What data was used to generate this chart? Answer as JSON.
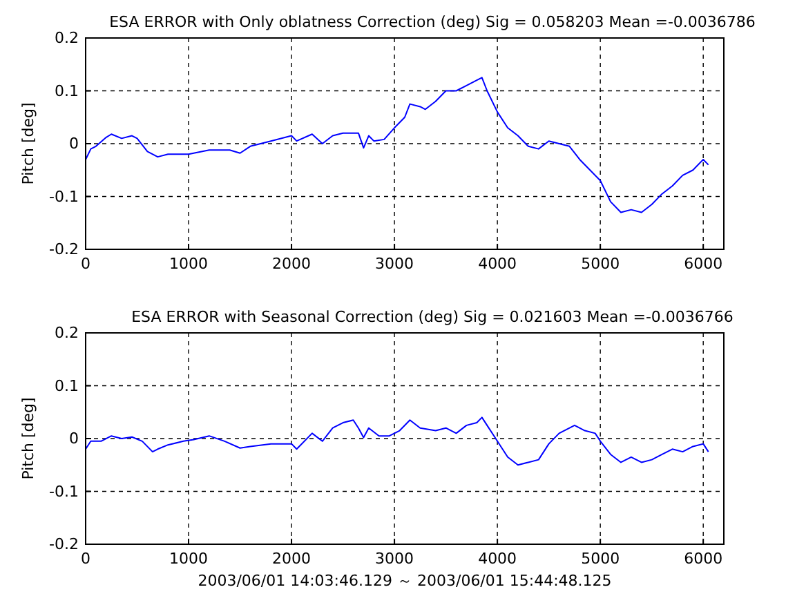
{
  "chart_data": [
    {
      "type": "line",
      "title": "ESA ERROR with Only oblatness Correction (deg)   Sig = 0.058203 Mean =-0.0036786",
      "ylabel": "Pitch [deg]",
      "xlim": [
        0,
        6200
      ],
      "xticks": [
        0,
        1000,
        2000,
        3000,
        4000,
        5000,
        6000
      ],
      "ylim": [
        -0.2,
        0.2
      ],
      "yticks": [
        -0.2,
        -0.1,
        0,
        0.1,
        0.2
      ],
      "grid": true,
      "marker": "none",
      "line_style": "solid",
      "series": [
        {
          "color": "#0000ff",
          "x": [
            0,
            50,
            100,
            200,
            250,
            350,
            450,
            500,
            600,
            700,
            800,
            1000,
            1200,
            1400,
            1500,
            1600,
            1800,
            2000,
            2050,
            2200,
            2300,
            2400,
            2500,
            2600,
            2650,
            2700,
            2750,
            2800,
            2900,
            3000,
            3100,
            3150,
            3250,
            3300,
            3400,
            3500,
            3600,
            3700,
            3800,
            3850,
            3900,
            4000,
            4100,
            4200,
            4300,
            4400,
            4500,
            4600,
            4700,
            4800,
            4900,
            5000,
            5100,
            5200,
            5300,
            5400,
            5500,
            5600,
            5700,
            5800,
            5900,
            6000,
            6050
          ],
          "values": [
            -0.03,
            -0.01,
            -0.005,
            0.012,
            0.018,
            0.01,
            0.015,
            0.01,
            -0.015,
            -0.025,
            -0.02,
            -0.02,
            -0.012,
            -0.012,
            -0.018,
            -0.005,
            0.005,
            0.015,
            0.005,
            0.018,
            0,
            0.015,
            0.02,
            0.02,
            0.02,
            -0.008,
            0.015,
            0.005,
            0.008,
            0.03,
            0.05,
            0.075,
            0.07,
            0.065,
            0.08,
            0.1,
            0.1,
            0.11,
            0.12,
            0.125,
            0.1,
            0.06,
            0.03,
            0.015,
            -0.005,
            -0.01,
            0.005,
            0,
            -0.005,
            -0.03,
            -0.05,
            -0.07,
            -0.11,
            -0.13,
            -0.125,
            -0.13,
            -0.115,
            -0.095,
            -0.08,
            -0.06,
            -0.05,
            -0.03,
            -0.04
          ]
        }
      ]
    },
    {
      "type": "line",
      "title": "ESA ERROR with Seasonal Correction (deg)   Sig = 0.021603 Mean =-0.0036766",
      "ylabel": "Pitch [deg]",
      "xlabel": "2003/06/01 14:03:46.129 ～ 2003/06/01 15:44:48.125",
      "xlim": [
        0,
        6200
      ],
      "xticks": [
        0,
        1000,
        2000,
        3000,
        4000,
        5000,
        6000
      ],
      "ylim": [
        -0.2,
        0.2
      ],
      "yticks": [
        -0.2,
        -0.1,
        0,
        0.1,
        0.2
      ],
      "grid": true,
      "marker": "none",
      "line_style": "solid",
      "series": [
        {
          "color": "#0000ff",
          "x": [
            0,
            50,
            150,
            250,
            350,
            450,
            550,
            650,
            700,
            800,
            950,
            1050,
            1200,
            1350,
            1500,
            1600,
            1800,
            2000,
            2050,
            2200,
            2300,
            2400,
            2500,
            2600,
            2650,
            2700,
            2750,
            2850,
            2950,
            3050,
            3150,
            3250,
            3400,
            3500,
            3600,
            3700,
            3800,
            3850,
            3900,
            4000,
            4100,
            4200,
            4300,
            4400,
            4500,
            4600,
            4750,
            4850,
            4950,
            5000,
            5100,
            5200,
            5300,
            5400,
            5500,
            5600,
            5700,
            5800,
            5900,
            6000,
            6050
          ],
          "values": [
            -0.02,
            -0.005,
            -0.005,
            0.005,
            0,
            0.003,
            -0.005,
            -0.025,
            -0.02,
            -0.012,
            -0.005,
            -0.002,
            0.005,
            -0.005,
            -0.018,
            -0.015,
            -0.01,
            -0.01,
            -0.02,
            0.01,
            -0.005,
            0.02,
            0.03,
            0.035,
            0.02,
            0.002,
            0.02,
            0.005,
            0.005,
            0.015,
            0.035,
            0.02,
            0.015,
            0.02,
            0.01,
            0.025,
            0.03,
            0.04,
            0.025,
            -0.005,
            -0.035,
            -0.05,
            -0.045,
            -0.04,
            -0.01,
            0.01,
            0.025,
            0.015,
            0.01,
            -0.005,
            -0.03,
            -0.045,
            -0.035,
            -0.045,
            -0.04,
            -0.03,
            -0.02,
            -0.025,
            -0.015,
            -0.01,
            -0.025
          ]
        }
      ]
    }
  ]
}
